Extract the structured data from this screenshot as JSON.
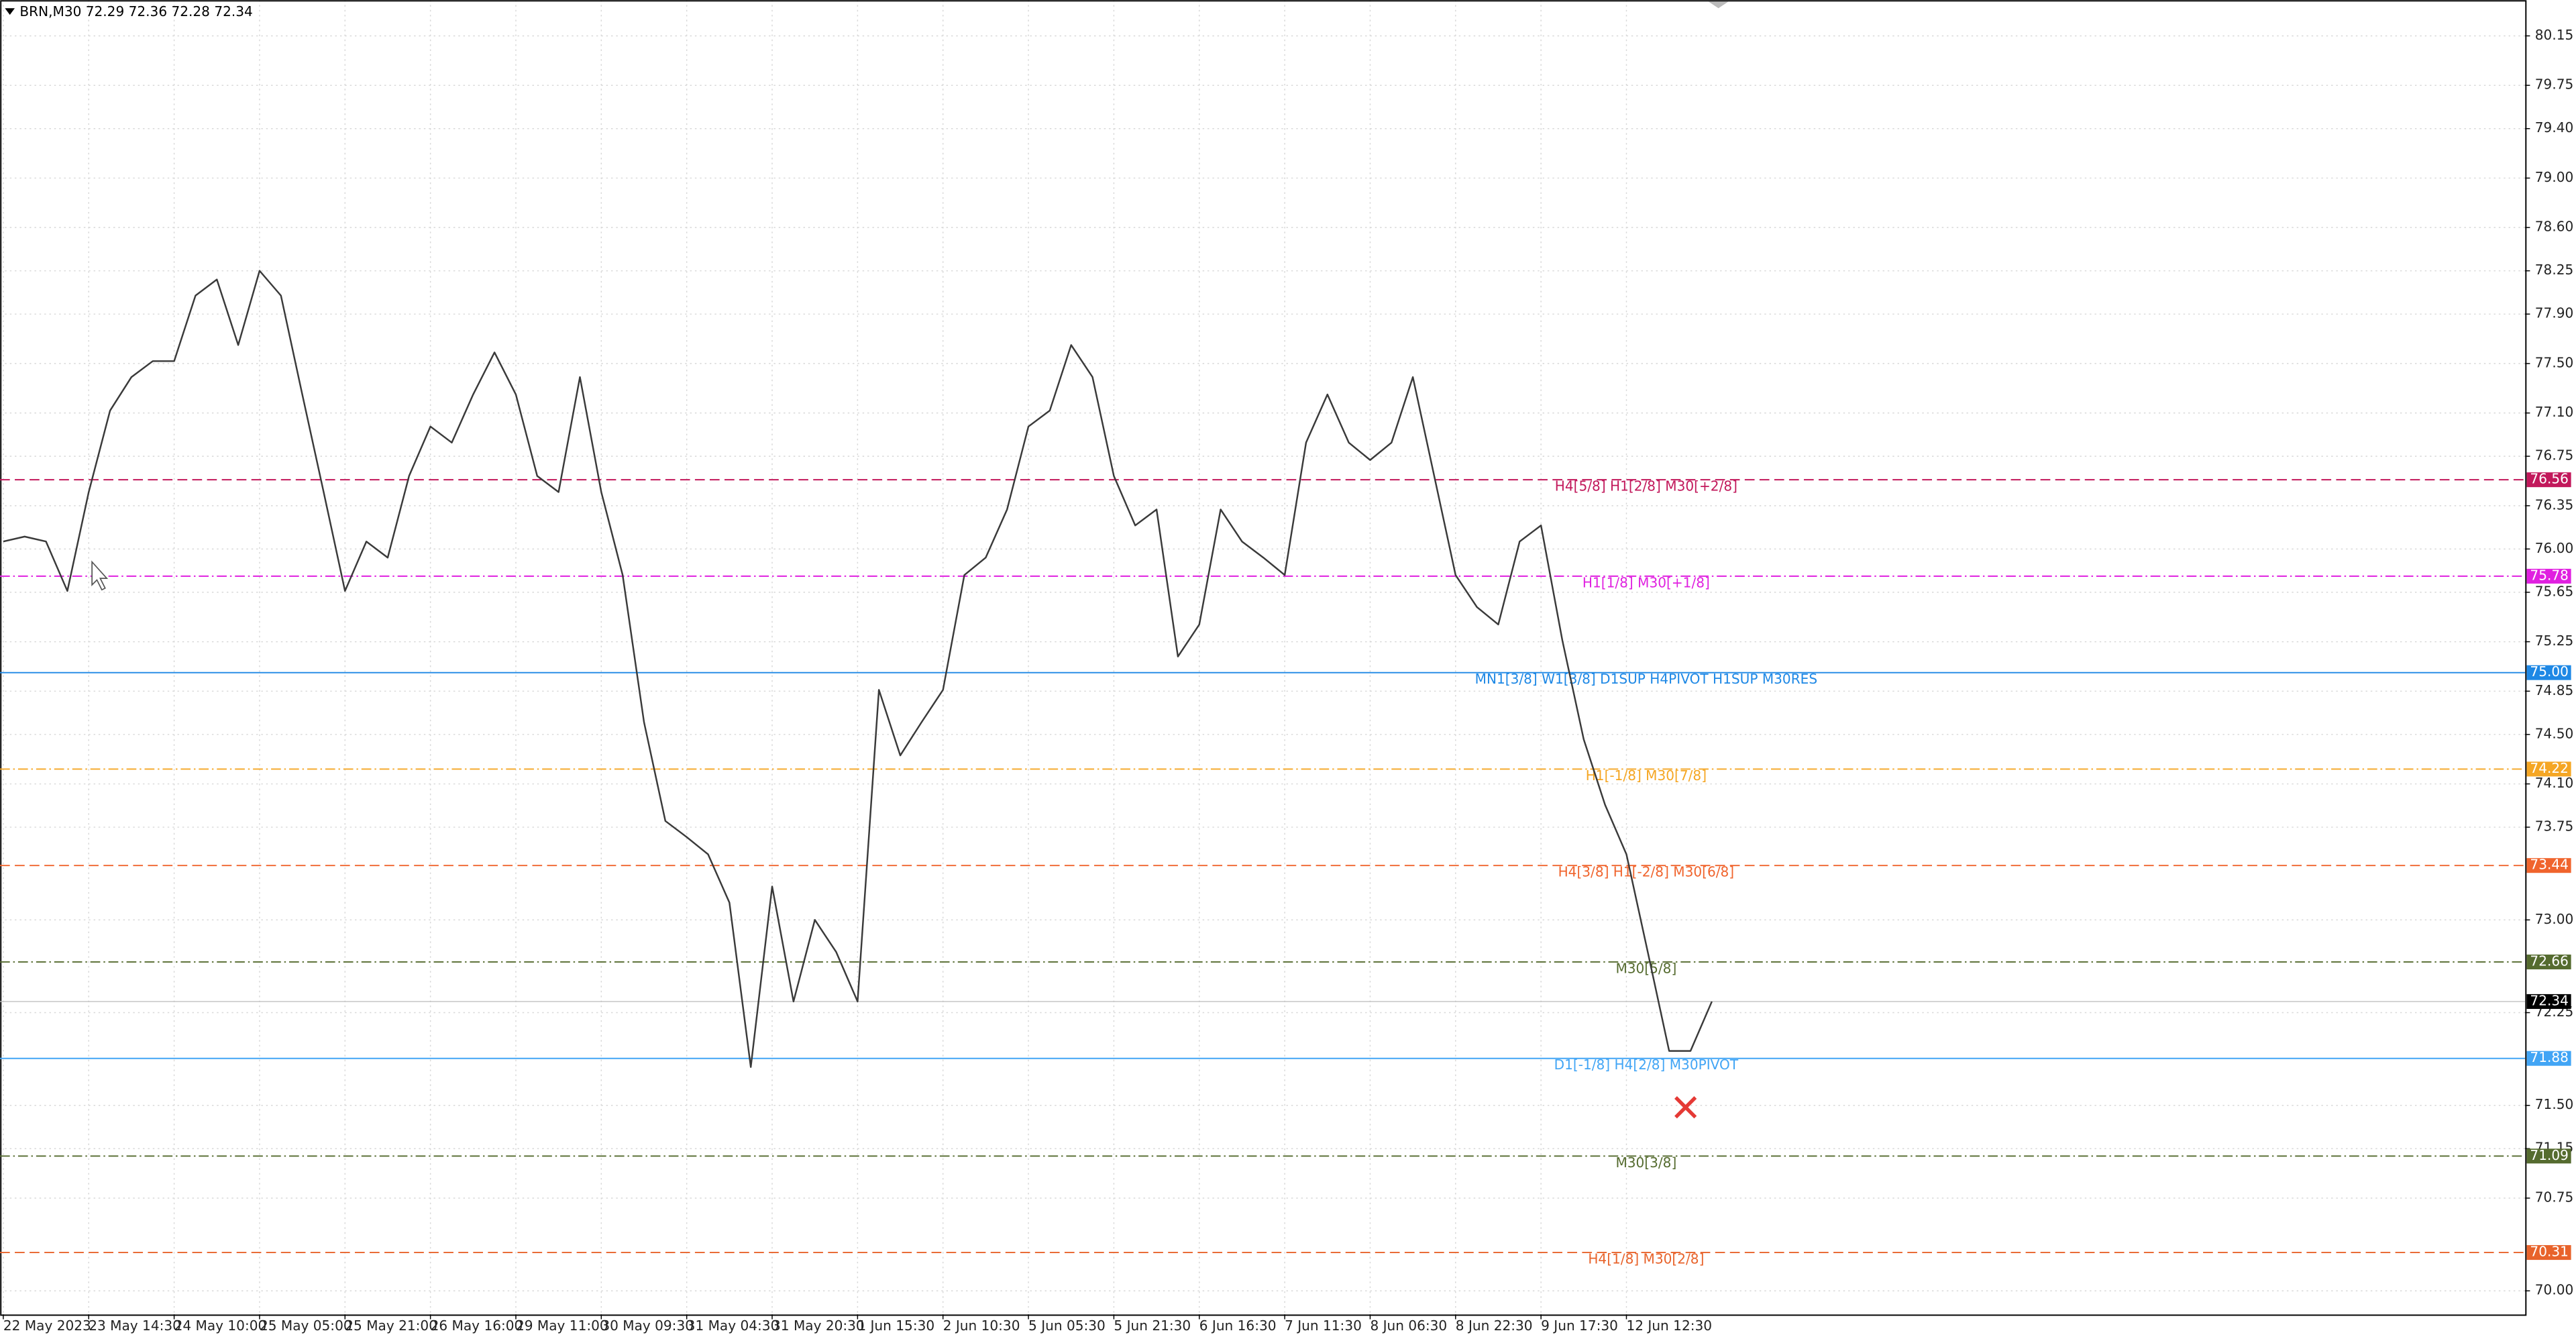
{
  "chart_data": {
    "type": "line",
    "title": "BRN,M30 72.29 72.36 72.28 72.34",
    "categories": [
      "22 May 2023",
      null,
      null,
      null,
      "23 May 14:30",
      null,
      null,
      null,
      "24 May 10:00",
      null,
      null,
      null,
      "25 May 05:00",
      null,
      null,
      null,
      "25 May 21:00",
      null,
      null,
      null,
      "26 May 16:00",
      null,
      null,
      null,
      "29 May 11:00",
      null,
      null,
      null,
      "30 May 09:30",
      null,
      null,
      null,
      "31 May 04:30",
      null,
      null,
      null,
      "31 May 20:30",
      null,
      null,
      null,
      "1 Jun 15:30",
      null,
      null,
      null,
      "2 Jun 10:30",
      null,
      null,
      null,
      "5 Jun 05:30",
      null,
      null,
      null,
      "5 Jun 21:30",
      null,
      null,
      null,
      "6 Jun 16:30",
      null,
      null,
      null,
      "7 Jun 11:30",
      null,
      null,
      null,
      "8 Jun 06:30",
      null,
      null,
      null,
      "8 Jun 22:30",
      null,
      null,
      null,
      "9 Jun 17:30",
      null,
      null,
      null,
      "12 Jun 12:30",
      null,
      null,
      null,
      null
    ],
    "series": [
      {
        "name": "BRN",
        "color": "#3a3a3a",
        "values": [
          76.06,
          76.1,
          76.06,
          75.66,
          76.46,
          77.12,
          77.39,
          77.52,
          77.52,
          78.05,
          78.18,
          77.65,
          78.25,
          78.05,
          77.25,
          76.46,
          75.66,
          76.06,
          75.93,
          76.59,
          76.99,
          76.86,
          77.25,
          77.59,
          77.25,
          76.59,
          76.46,
          77.39,
          76.46,
          75.79,
          74.6,
          73.8,
          73.67,
          73.53,
          73.14,
          71.81,
          73.27,
          72.34,
          73.0,
          72.74,
          72.34,
          74.86,
          74.33,
          74.6,
          74.86,
          75.79,
          75.93,
          76.32,
          76.99,
          77.12,
          77.65,
          77.39,
          76.59,
          76.19,
          76.32,
          75.13,
          75.39,
          76.32,
          76.06,
          75.93,
          75.79,
          76.86,
          77.25,
          76.86,
          76.72,
          76.86,
          77.39,
          76.59,
          75.79,
          75.53,
          75.39,
          76.06,
          76.19,
          75.26,
          74.46,
          73.93,
          73.53,
          72.74,
          71.94,
          71.94,
          72.34
        ]
      }
    ],
    "ylim": [
      69.81,
      80.44
    ],
    "yticks": [
      80.15,
      79.75,
      {
        "value": 79.4,
        "label": "79.40"
      },
      {
        "value": 79.0,
        "label": "79.00"
      },
      {
        "value": 78.6,
        "label": "78.60"
      },
      78.25,
      {
        "value": 77.9,
        "label": "77.90"
      },
      {
        "value": 77.5,
        "label": "77.50"
      },
      {
        "value": 77.1,
        "label": "77.10"
      },
      76.75,
      76.35,
      {
        "value": 76.0,
        "label": "76.00"
      },
      75.65,
      75.25,
      74.85,
      {
        "value": 74.5,
        "label": "74.50"
      },
      {
        "value": 74.1,
        "label": "74.10"
      },
      73.75,
      {
        "value": 73.0,
        "label": "73.00"
      },
      72.25,
      {
        "value": 71.5,
        "label": "71.50"
      },
      71.15,
      70.75,
      {
        "value": 70.0,
        "label": "70.00"
      }
    ],
    "grid": true,
    "levels": [
      {
        "value": 76.56,
        "label": "H4[5/8] H1[2/8] M30[+2/8]",
        "color": "#c2185b",
        "dash": "dashed"
      },
      {
        "value": 75.78,
        "label": "H1[1/8] M30[+1/8]",
        "color": "#e020e0",
        "dash": "dashdot"
      },
      {
        "value": 75.0,
        "value_label": "75.00",
        "label": "MN1[3/8] W1[3/8] D1SUP H4PIVOT H1SUP M30RES",
        "color": "#1e88e5",
        "dash": "solid"
      },
      {
        "value": 74.22,
        "label": "H1[-1/8] M30[7/8]",
        "color": "#f5a623",
        "dash": "dashdot"
      },
      {
        "value": 73.44,
        "label": "H4[3/8] H1[-2/8] M30[6/8]",
        "color": "#f0642d",
        "dash": "dashed"
      },
      {
        "value": 72.66,
        "label": "M30[5/8]",
        "color": "#556b2f",
        "dash": "dashdot"
      },
      {
        "value": 71.88,
        "label": "D1[-1/8] H4[2/8] M30PIVOT",
        "color": "#42a5f5",
        "dash": "solid"
      },
      {
        "value": 71.09,
        "label": "M30[3/8]",
        "color": "#556b2f",
        "dash": "dashdot"
      },
      {
        "value": 70.31,
        "label": "H4[1/8] M30[2/8]",
        "color": "#e8632b",
        "dash": "dashed"
      }
    ],
    "current_price": 72.34
  }
}
